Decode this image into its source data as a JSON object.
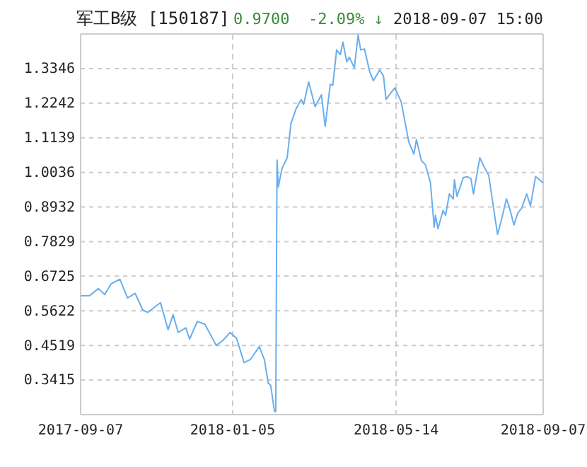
{
  "chart_data": {
    "type": "line",
    "title": "军工B级 [150187]",
    "subtitle": "0.9700  -2.09% ↓",
    "annotations": [
      "2018-09-07 15:00"
    ],
    "x": [
      "2017-09-07",
      "2017-09-14",
      "2017-09-21",
      "2017-09-26",
      "2017-10-01",
      "2017-10-08",
      "2017-10-14",
      "2017-10-20",
      "2017-10-26",
      "2017-10-30",
      "2017-11-09",
      "2017-11-15",
      "2017-11-19",
      "2017-11-23",
      "2017-11-29",
      "2017-12-02",
      "2017-12-08",
      "2017-12-14",
      "2017-12-23",
      "2017-12-28",
      "2018-01-03",
      "2018-01-08",
      "2018-01-14",
      "2018-01-19",
      "2018-01-26",
      "2018-01-30",
      "2018-02-02",
      "2018-02-04",
      "2018-02-07",
      "2018-02-08",
      "2018-02-09",
      "2018-02-10",
      "2018-02-13",
      "2018-02-17",
      "2018-02-20",
      "2018-02-24",
      "2018-02-28",
      "2018-03-02",
      "2018-03-06",
      "2018-03-11",
      "2018-03-16",
      "2018-03-19",
      "2018-03-23",
      "2018-03-25",
      "2018-03-28",
      "2018-03-31",
      "2018-04-02",
      "2018-04-05",
      "2018-04-07",
      "2018-04-11",
      "2018-04-14",
      "2018-04-16",
      "2018-04-19",
      "2018-04-23",
      "2018-04-26",
      "2018-05-01",
      "2018-05-04",
      "2018-05-06",
      "2018-05-10",
      "2018-05-13",
      "2018-05-18",
      "2018-05-24",
      "2018-05-28",
      "2018-05-30",
      "2018-06-03",
      "2018-06-06",
      "2018-06-10",
      "2018-06-13",
      "2018-06-14",
      "2018-06-16",
      "2018-06-20",
      "2018-06-22",
      "2018-06-25",
      "2018-06-28",
      "2018-06-29",
      "2018-07-01",
      "2018-07-06",
      "2018-07-09",
      "2018-07-12",
      "2018-07-14",
      "2018-07-19",
      "2018-07-23",
      "2018-07-26",
      "2018-07-31",
      "2018-08-02",
      "2018-08-05",
      "2018-08-09",
      "2018-08-11",
      "2018-08-15",
      "2018-08-18",
      "2018-08-21",
      "2018-08-25",
      "2018-08-28",
      "2018-09-01",
      "2018-09-03",
      "2018-09-07"
    ],
    "series": [
      {
        "color": "#6aaeee",
        "values": [
          0.61,
          0.61,
          0.633,
          0.614,
          0.648,
          0.663,
          0.603,
          0.618,
          0.565,
          0.557,
          0.588,
          0.502,
          0.55,
          0.493,
          0.508,
          0.472,
          0.528,
          0.52,
          0.452,
          0.467,
          0.493,
          0.475,
          0.397,
          0.407,
          0.448,
          0.407,
          0.332,
          0.324,
          0.241,
          0.241,
          1.043,
          0.957,
          1.017,
          1.05,
          1.16,
          1.206,
          1.236,
          1.221,
          1.292,
          1.213,
          1.251,
          1.15,
          1.285,
          1.281,
          1.394,
          1.379,
          1.419,
          1.356,
          1.371,
          1.337,
          1.442,
          1.394,
          1.397,
          1.326,
          1.296,
          1.33,
          1.311,
          1.236,
          1.258,
          1.273,
          1.228,
          1.1,
          1.062,
          1.108,
          1.04,
          1.029,
          0.972,
          0.829,
          0.867,
          0.824,
          0.882,
          0.867,
          0.935,
          0.919,
          0.98,
          0.927,
          0.987,
          0.99,
          0.984,
          0.935,
          1.05,
          1.017,
          0.995,
          0.859,
          0.806,
          0.851,
          0.919,
          0.897,
          0.836,
          0.874,
          0.889,
          0.935,
          0.897,
          0.99,
          0.984,
          0.97
        ]
      }
    ],
    "xlim": [
      "2017-09-07",
      "2018-09-07"
    ],
    "xticks": [
      "2017-09-07",
      "2018-01-05",
      "2018-05-14",
      "2018-09-07"
    ],
    "ylim": [
      0.2311,
      1.445
    ],
    "yticks": [
      0.3415,
      0.4519,
      0.5622,
      0.6725,
      0.7829,
      0.8932,
      1.0036,
      1.1139,
      1.2242,
      1.3346
    ],
    "grid": true
  }
}
